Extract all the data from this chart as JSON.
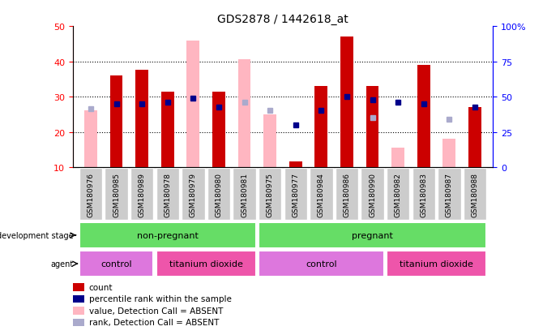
{
  "title": "GDS2878 / 1442618_at",
  "samples": [
    "GSM180976",
    "GSM180985",
    "GSM180989",
    "GSM180978",
    "GSM180979",
    "GSM180980",
    "GSM180981",
    "GSM180975",
    "GSM180977",
    "GSM180984",
    "GSM180986",
    "GSM180990",
    "GSM180982",
    "GSM180983",
    "GSM180987",
    "GSM180988"
  ],
  "count": [
    null,
    36,
    37.5,
    31.5,
    null,
    31.5,
    null,
    null,
    11.5,
    33,
    47,
    33,
    null,
    39,
    null,
    27
  ],
  "pink_bar": [
    26,
    null,
    null,
    null,
    46,
    null,
    40.5,
    25,
    null,
    null,
    null,
    null,
    15.5,
    null,
    18,
    null
  ],
  "percentile_rank": [
    null,
    28,
    28,
    28.5,
    29.5,
    27,
    null,
    null,
    22,
    26,
    30,
    29,
    28.5,
    28,
    null,
    27
  ],
  "percentile_rank_absent": [
    26.5,
    null,
    null,
    null,
    null,
    null,
    28.5,
    26,
    null,
    null,
    null,
    24,
    null,
    null,
    23.5,
    null
  ],
  "ylim_left": [
    10,
    50
  ],
  "ylim_right": [
    0,
    100
  ],
  "yticks_left": [
    10,
    20,
    30,
    40,
    50
  ],
  "yticks_right": [
    0,
    25,
    50,
    75,
    100
  ],
  "development_stage_groups": [
    {
      "label": "non-pregnant",
      "start": 0,
      "end": 7
    },
    {
      "label": "pregnant",
      "start": 7,
      "end": 16
    }
  ],
  "agent_groups": [
    {
      "label": "control",
      "start": 0,
      "end": 3,
      "color": "#dd77dd"
    },
    {
      "label": "titanium dioxide",
      "start": 3,
      "end": 7,
      "color": "#ee55aa"
    },
    {
      "label": "control",
      "start": 7,
      "end": 12,
      "color": "#dd77dd"
    },
    {
      "label": "titanium dioxide",
      "start": 12,
      "end": 16,
      "color": "#ee55aa"
    }
  ],
  "dev_stage_color": "#66dd66",
  "bar_width": 0.5,
  "count_color": "#cc0000",
  "pink_color": "#ffb6c1",
  "blue_color": "#00008b",
  "lightblue_color": "#aaaacc",
  "ticklabel_bg_color": "#cccccc",
  "plot_bg_color": "#ffffff",
  "legend_items": [
    {
      "color": "#cc0000",
      "label": "count"
    },
    {
      "color": "#00008b",
      "label": "percentile rank within the sample"
    },
    {
      "color": "#ffb6c1",
      "label": "value, Detection Call = ABSENT"
    },
    {
      "color": "#aaaacc",
      "label": "rank, Detection Call = ABSENT"
    }
  ]
}
